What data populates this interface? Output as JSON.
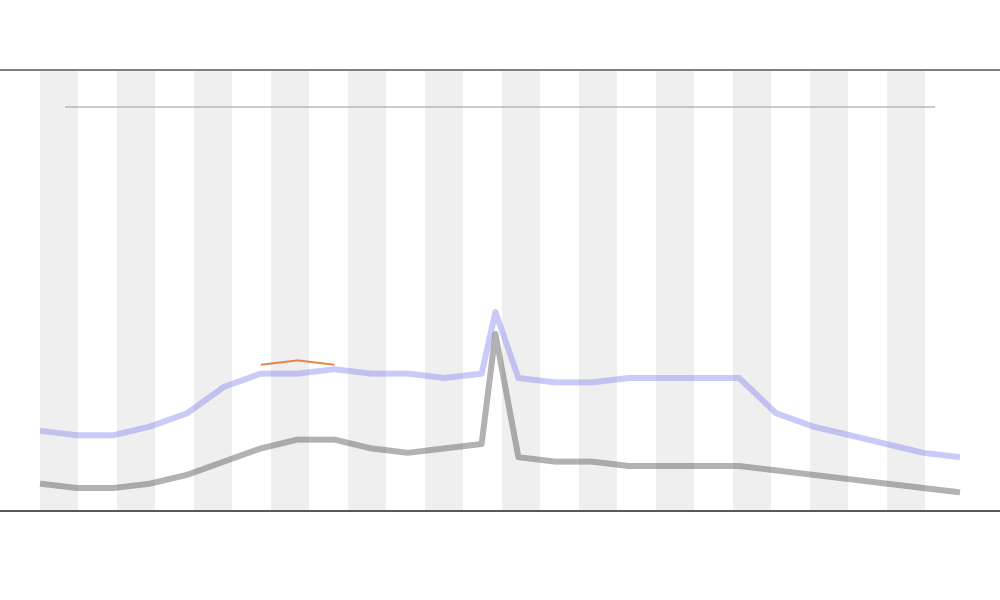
{
  "chart_data": {
    "type": "line",
    "x": [
      0,
      4,
      8,
      12,
      16,
      20,
      24,
      28,
      32,
      36,
      40,
      44,
      48,
      49.5,
      52,
      56,
      60,
      64,
      68,
      72,
      76,
      80,
      84,
      88,
      92,
      96,
      100
    ],
    "xlim": [
      0,
      100
    ],
    "ylim": [
      0,
      100
    ],
    "series": [
      {
        "color": "#8a8af0",
        "values": [
          18,
          17,
          17,
          19,
          22,
          28,
          31,
          31,
          32,
          31,
          31,
          30,
          31,
          45,
          30,
          29,
          29,
          30,
          30,
          30,
          30,
          22,
          19,
          17,
          15,
          13,
          12
        ]
      },
      {
        "color": "#555555",
        "values": [
          6,
          5,
          5,
          6,
          8,
          11,
          14,
          16,
          16,
          14,
          13,
          14,
          15,
          40,
          12,
          11,
          11,
          10,
          10,
          10,
          10,
          9,
          8,
          7,
          6,
          5,
          4
        ]
      },
      {
        "color": "#e07b39",
        "values": [
          null,
          null,
          null,
          null,
          null,
          null,
          33,
          34,
          33,
          null,
          null,
          null,
          null,
          null,
          null,
          null,
          null,
          null,
          null,
          null,
          null,
          null,
          null,
          null,
          null,
          null,
          null
        ]
      }
    ]
  }
}
